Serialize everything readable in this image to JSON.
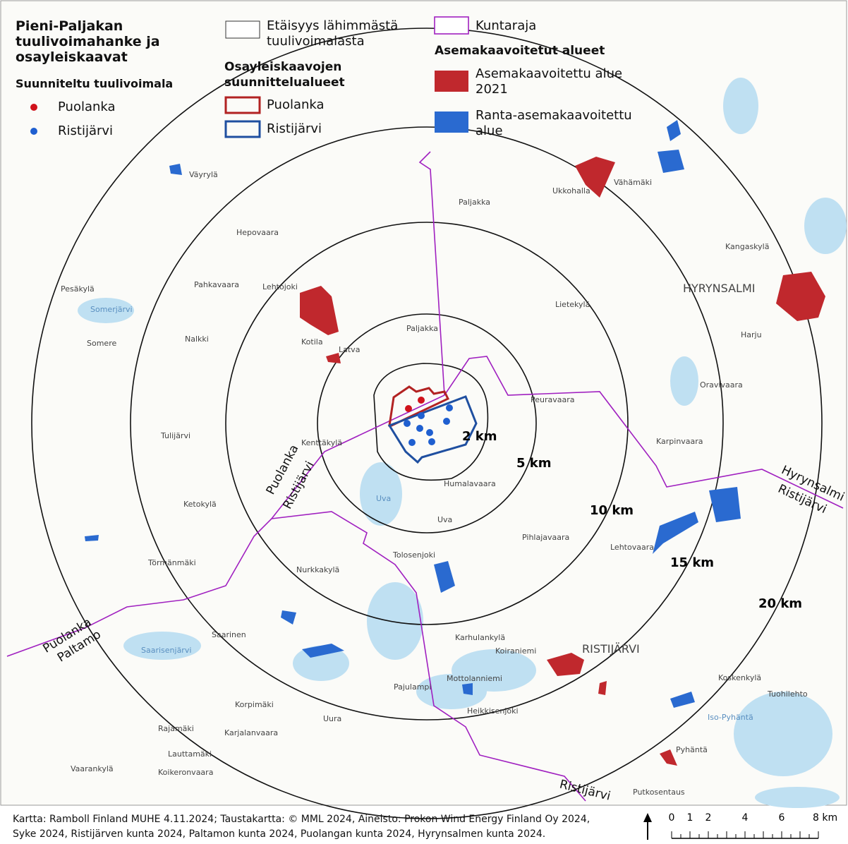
{
  "legend": {
    "title": "Pieni-Paljakan tuulivoimahanke ja osayleiskaavat",
    "turbines_heading": "Suunniteltu tuulivoimala",
    "turbines": [
      "Puolanka",
      "Ristijärvi"
    ],
    "distance": "Etäisyys lähimmästä tuulivoimalasta",
    "plan_heading": "Osayleiskaavojen suunnittelualueet",
    "plans": [
      "Puolanka",
      "Ristijärvi"
    ],
    "boundary": "Kuntaraja",
    "zoning_heading": "Asemakaavoitetut alueet",
    "zoning": [
      "Asemakaavoitettu alue 2021",
      "Ranta-asemakaavoitettu alue"
    ]
  },
  "rings": [
    "2 km",
    "5 km",
    "10 km",
    "15 km",
    "20 km"
  ],
  "places": [
    "Väyrylä",
    "Hepovaara",
    "Paljakka",
    "Ukkohalla",
    "Vähämäki",
    "Kangaskylä",
    "Pesäkylä",
    "Pahkavaara",
    "Lehtojoki",
    "HYRYNSALMI",
    "Lietekylä",
    "Somerjärvi",
    "Paljakka",
    "Somere",
    "Nalkki",
    "Kotila",
    "Latva",
    "Harju",
    "Oravivaara",
    "Peuravaara",
    "Tulijärvi",
    "Kenttäkylä",
    "Karpinvaara",
    "Humalavaara",
    "Ketokylä",
    "Uva",
    "Uva",
    "Pihlajavaara",
    "Lehtovaara",
    "Tolosenjoki",
    "Törmänmäki",
    "Nurkkakylä",
    "Saarinen",
    "Saarisenjärvi",
    "Karhulankylä",
    "Koiraniemi",
    "RISTIJÄRVI",
    "Mottolanniemi",
    "Pajulampi",
    "Koskenkylä",
    "Tuohilehto",
    "Korpimäki",
    "Heikkisenjoki",
    "Uura",
    "Iso-Pyhäntä",
    "Rajamäki",
    "Karjalanvaara",
    "Lauttamäki",
    "Pyhäntä",
    "Vaarankylä",
    "Koikeronvaara",
    "Putkosentaus"
  ],
  "municipality_labels": [
    "Puolanka",
    "Ristijärvi",
    "Hyrynsalmi",
    "Ristijärvi",
    "Puolanka",
    "Paltamo",
    "Ristijärvi"
  ],
  "footer": {
    "credits": [
      "Kartta: Ramboll Finland MUHE 4.11.2024; Taustakartta: © MML 2024, Aineisto: Prokon Wind Energy Finland Oy 2024,",
      "Syke 2024, Ristijärven kunta 2024, Paltamon kunta 2024, Puolangan kunta 2024, Hyrynsalmen kunta 2024."
    ]
  },
  "scale": {
    "labels": [
      "0",
      "1",
      "2",
      "4",
      "6",
      "8 km"
    ]
  }
}
